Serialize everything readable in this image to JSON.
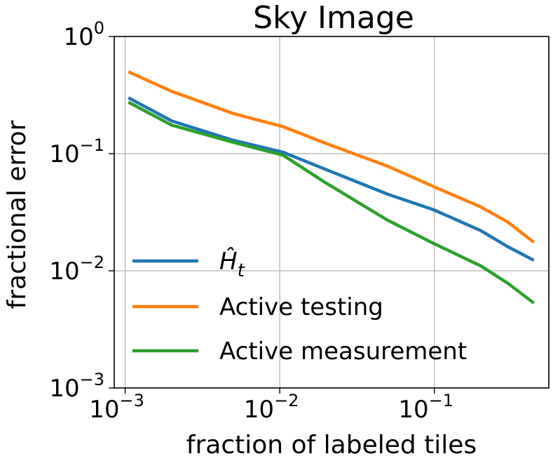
{
  "chart_data": {
    "type": "line",
    "title": "Sky Image",
    "xlabel": "fraction of labeled tiles",
    "ylabel": "fractional error",
    "xscale": "log",
    "yscale": "log",
    "xlim": [
      0.00085,
      0.55
    ],
    "ylim": [
      0.001,
      1
    ],
    "grid": true,
    "legend_position": "lower-left",
    "x_ticks": [
      {
        "base": "10",
        "exp": "−3",
        "value": 0.001
      },
      {
        "base": "10",
        "exp": "−2",
        "value": 0.01
      },
      {
        "base": "10",
        "exp": "−1",
        "value": 0.1
      }
    ],
    "y_ticks": [
      {
        "base": "10",
        "exp": "0",
        "value": 1
      },
      {
        "base": "10",
        "exp": "−1",
        "value": 0.1
      },
      {
        "base": "10",
        "exp": "−2",
        "value": 0.01
      },
      {
        "base": "10",
        "exp": "−3",
        "value": 0.001
      }
    ],
    "series": [
      {
        "name": "Ĥ",
        "name_subscript": "t",
        "color": "#1f77b4",
        "x": [
          0.00105,
          0.002,
          0.005,
          0.0105,
          0.02,
          0.05,
          0.1,
          0.2,
          0.3,
          0.44
        ],
        "y": [
          0.3,
          0.19,
          0.13,
          0.103,
          0.073,
          0.045,
          0.033,
          0.022,
          0.016,
          0.0123
        ]
      },
      {
        "name": "Active testing",
        "color": "#ff7f0e",
        "x": [
          0.00105,
          0.002,
          0.005,
          0.0105,
          0.02,
          0.05,
          0.1,
          0.2,
          0.3,
          0.44
        ],
        "y": [
          0.5,
          0.34,
          0.22,
          0.17,
          0.122,
          0.078,
          0.052,
          0.035,
          0.026,
          0.0175
        ]
      },
      {
        "name": "Active measurement",
        "color": "#2ca02c",
        "x": [
          0.00105,
          0.002,
          0.005,
          0.0105,
          0.02,
          0.05,
          0.1,
          0.2,
          0.3,
          0.44
        ],
        "y": [
          0.275,
          0.175,
          0.125,
          0.097,
          0.056,
          0.027,
          0.017,
          0.011,
          0.0078,
          0.0053
        ]
      }
    ]
  }
}
